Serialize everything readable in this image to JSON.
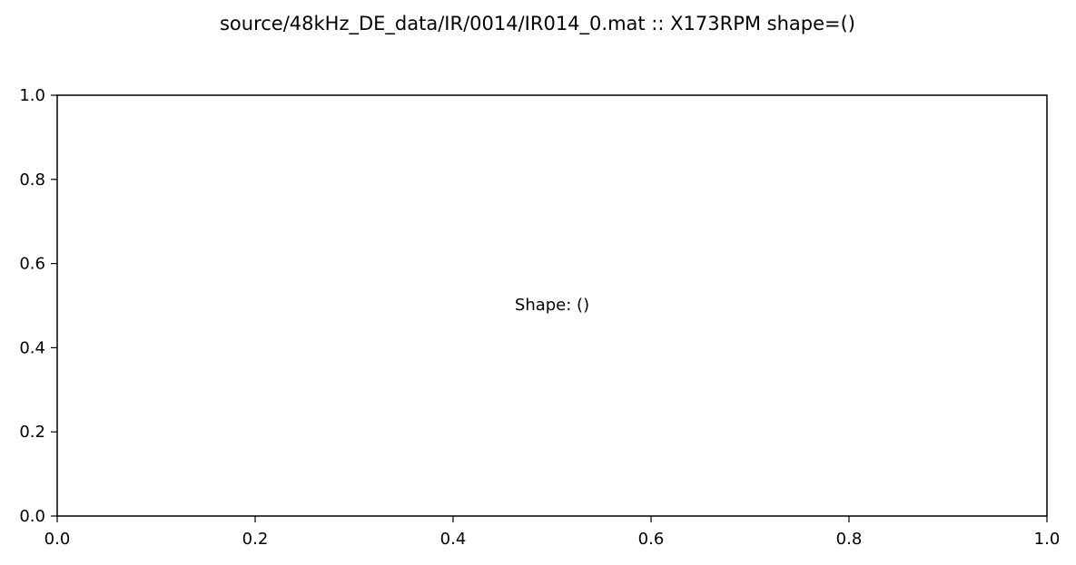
{
  "chart_data": {
    "type": "scatter",
    "title": "source/48kHz_DE_data/IR/0014/IR014_0.mat :: X173RPM  shape=()",
    "xlabel": "",
    "ylabel": "",
    "xlim": [
      0.0,
      1.0
    ],
    "ylim": [
      0.0,
      1.0
    ],
    "x_ticks": [
      "0.0",
      "0.2",
      "0.4",
      "0.6",
      "0.8",
      "1.0"
    ],
    "y_ticks": [
      "0.0",
      "0.2",
      "0.4",
      "0.6",
      "0.8",
      "1.0"
    ],
    "series": [],
    "annotation": {
      "text": "Shape: ()",
      "x": 0.5,
      "y": 0.5
    },
    "grid": false,
    "legend": false
  }
}
